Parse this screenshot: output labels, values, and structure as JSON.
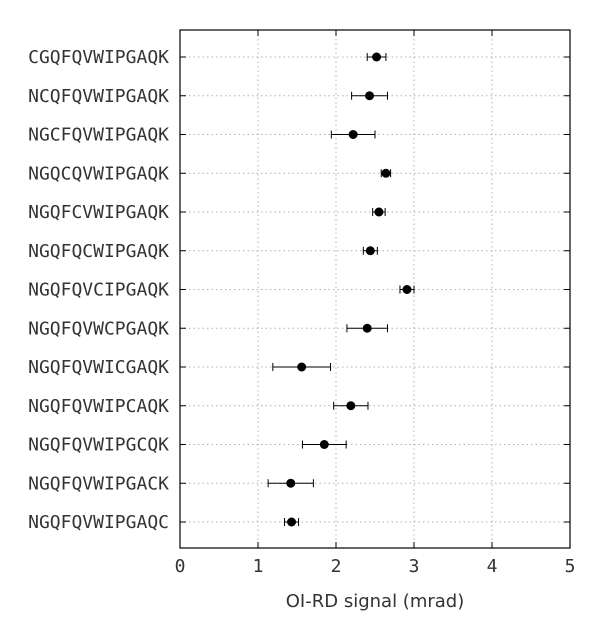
{
  "chart_data": {
    "type": "scatter",
    "orientation": "horizontal",
    "title": "",
    "xlabel": "OI-RD signal (mrad)",
    "ylabel": "",
    "xlim": [
      0,
      5
    ],
    "xticks": [
      "0",
      "1",
      "2",
      "3",
      "4",
      "5"
    ],
    "grid": true,
    "legend": "none",
    "marker_color": "#000000",
    "grid_color": "#b0b0b0",
    "categories": [
      "CGQFQVWIPGAQK",
      "NCQFQVWIPGAQK",
      "NGCFQVWIPGAQK",
      "NGQCQVWIPGAQK",
      "NGQFCVWIPGAQK",
      "NGQFQCWIPGAQK",
      "NGQFQVCIPGAQK",
      "NGQFQVWCPGAQK",
      "NGQFQVWICGAQK",
      "NGQFQVWIPCAQK",
      "NGQFQVWIPGCQK",
      "NGQFQVWIPGACK",
      "NGQFQVWIPGAQC"
    ],
    "values": [
      2.52,
      2.43,
      2.22,
      2.64,
      2.55,
      2.44,
      2.91,
      2.4,
      1.56,
      2.19,
      1.85,
      1.42,
      1.43
    ],
    "errors": [
      0.12,
      0.23,
      0.28,
      0.06,
      0.08,
      0.09,
      0.09,
      0.26,
      0.37,
      0.22,
      0.28,
      0.29,
      0.09
    ]
  }
}
